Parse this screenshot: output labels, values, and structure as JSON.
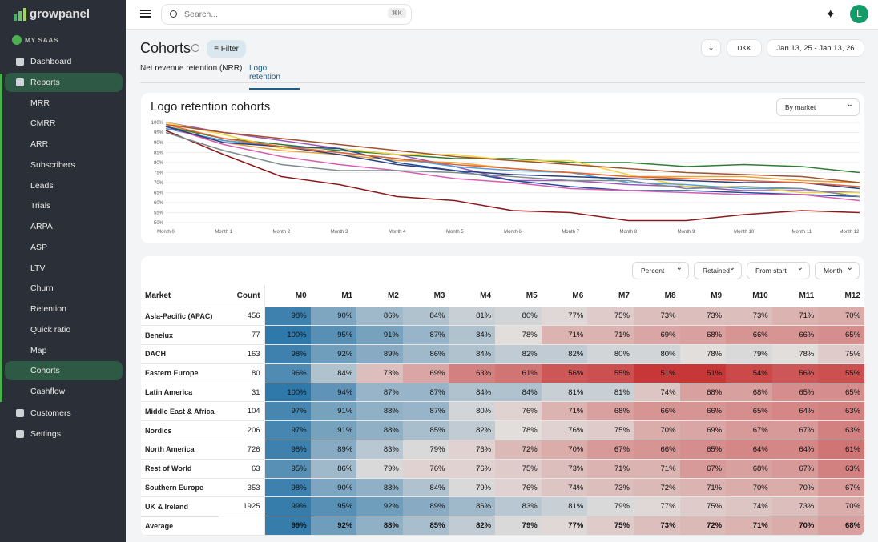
{
  "app": {
    "logo": "growpanel",
    "workspace": "MY SAAS",
    "nav": [
      "Dashboard",
      "Reports",
      "MRR",
      "CMRR",
      "ARR",
      "Subscribers",
      "Leads",
      "Trials",
      "ARPA",
      "ASP",
      "LTV",
      "Churn",
      "Retention",
      "Quick ratio",
      "Map",
      "Cohorts",
      "Cashflow",
      "Customers",
      "Settings"
    ]
  },
  "search": {
    "placeholder": "Search...",
    "shortcut": "⌘K"
  },
  "avatar": "L",
  "page": {
    "title": "Cohorts",
    "filter": "Filter",
    "currency": "DKK",
    "date_range": "Jan 13, 25 - Jan 13, 26",
    "tabs": [
      "Net revenue retention (NRR)",
      "Logo retention"
    ],
    "chart_control": "By market"
  },
  "chart_data": {
    "type": "line",
    "title": "Logo retention cohorts",
    "categories": [
      "Month 0",
      "Month 1",
      "Month 2",
      "Month 3",
      "Month 4",
      "Month 5",
      "Month 6",
      "Month 7",
      "Month 8",
      "Month 9",
      "Month 10",
      "Month 11",
      "Month 12"
    ],
    "ylim": [
      50,
      100
    ],
    "yticks": [
      {
        "value": 50,
        "label": "50%"
      },
      {
        "value": 55,
        "label": "55%"
      },
      {
        "value": 60,
        "label": "60%"
      },
      {
        "value": 65,
        "label": "65%"
      },
      {
        "value": 70,
        "label": "70%"
      },
      {
        "value": 75,
        "label": "75%"
      },
      {
        "value": 80,
        "label": "80%"
      },
      {
        "value": 85,
        "label": "85%"
      },
      {
        "value": 90,
        "label": "90%"
      },
      {
        "value": 95,
        "label": "95%"
      },
      {
        "value": 100,
        "label": "100%"
      }
    ],
    "grid": true,
    "series": [
      {
        "color": "#e8a33d",
        "values": [
          98,
          90,
          86,
          84,
          81,
          80,
          77,
          75,
          73,
          73,
          73,
          71,
          70
        ]
      },
      {
        "color": "#9b59b6",
        "values": [
          100,
          95,
          91,
          87,
          84,
          78,
          71,
          71,
          69,
          68,
          66,
          66,
          65
        ]
      },
      {
        "color": "#2e7d32",
        "values": [
          98,
          92,
          89,
          86,
          84,
          82,
          82,
          80,
          80,
          78,
          79,
          78,
          75
        ]
      },
      {
        "color": "#8b1a1a",
        "values": [
          96,
          84,
          73,
          69,
          63,
          61,
          56,
          55,
          51,
          51,
          54,
          56,
          55
        ]
      },
      {
        "color": "#f0d43a",
        "values": [
          100,
          94,
          87,
          87,
          84,
          84,
          81,
          81,
          74,
          68,
          68,
          65,
          65
        ]
      },
      {
        "color": "#1f4e9c",
        "values": [
          97,
          91,
          88,
          87,
          80,
          76,
          71,
          68,
          66,
          66,
          65,
          64,
          63
        ]
      },
      {
        "color": "#4fa3d9",
        "values": [
          97,
          91,
          88,
          85,
          82,
          78,
          76,
          75,
          70,
          69,
          67,
          67,
          63
        ]
      },
      {
        "color": "#d65db1",
        "values": [
          98,
          89,
          83,
          79,
          76,
          72,
          70,
          67,
          66,
          65,
          64,
          64,
          61
        ]
      },
      {
        "color": "#7f8c8d",
        "values": [
          95,
          86,
          79,
          76,
          76,
          75,
          73,
          71,
          71,
          67,
          68,
          67,
          63
        ]
      },
      {
        "color": "#2c3e80",
        "values": [
          98,
          90,
          88,
          84,
          79,
          76,
          74,
          73,
          72,
          71,
          70,
          70,
          67
        ]
      },
      {
        "color": "#a0522d",
        "values": [
          99,
          95,
          92,
          89,
          86,
          83,
          81,
          79,
          77,
          75,
          74,
          73,
          70
        ]
      },
      {
        "color": "#e8622c",
        "values": [
          99,
          92,
          88,
          85,
          82,
          79,
          77,
          75,
          73,
          72,
          71,
          70,
          68
        ]
      }
    ]
  },
  "table": {
    "controls": [
      "Percent",
      "Retained",
      "From start",
      "Month"
    ],
    "columns": [
      "Market",
      "Count",
      "M0",
      "M1",
      "M2",
      "M3",
      "M4",
      "M5",
      "M6",
      "M7",
      "M8",
      "M9",
      "M10",
      "M11",
      "M12"
    ],
    "rows": [
      {
        "market": "Asia-Pacific (APAC)",
        "count": 456,
        "values": [
          "98%",
          "90%",
          "86%",
          "84%",
          "81%",
          "80%",
          "77%",
          "75%",
          "73%",
          "73%",
          "73%",
          "71%",
          "70%"
        ]
      },
      {
        "market": "Benelux",
        "count": 77,
        "values": [
          "100%",
          "95%",
          "91%",
          "87%",
          "84%",
          "78%",
          "71%",
          "71%",
          "69%",
          "68%",
          "66%",
          "66%",
          "65%"
        ]
      },
      {
        "market": "DACH",
        "count": 163,
        "values": [
          "98%",
          "92%",
          "89%",
          "86%",
          "84%",
          "82%",
          "82%",
          "80%",
          "80%",
          "78%",
          "79%",
          "78%",
          "75%"
        ]
      },
      {
        "market": "Eastern Europe",
        "count": 80,
        "values": [
          "96%",
          "84%",
          "73%",
          "69%",
          "63%",
          "61%",
          "56%",
          "55%",
          "51%",
          "51%",
          "54%",
          "56%",
          "55%"
        ]
      },
      {
        "market": "Latin America",
        "count": 31,
        "values": [
          "100%",
          "94%",
          "87%",
          "87%",
          "84%",
          "84%",
          "81%",
          "81%",
          "74%",
          "68%",
          "68%",
          "65%",
          "65%"
        ]
      },
      {
        "market": "Middle East & Africa",
        "count": 104,
        "values": [
          "97%",
          "91%",
          "88%",
          "87%",
          "80%",
          "76%",
          "71%",
          "68%",
          "66%",
          "66%",
          "65%",
          "64%",
          "63%"
        ]
      },
      {
        "market": "Nordics",
        "count": 206,
        "values": [
          "97%",
          "91%",
          "88%",
          "85%",
          "82%",
          "78%",
          "76%",
          "75%",
          "70%",
          "69%",
          "67%",
          "67%",
          "63%"
        ]
      },
      {
        "market": "North America",
        "count": 726,
        "values": [
          "98%",
          "89%",
          "83%",
          "79%",
          "76%",
          "72%",
          "70%",
          "67%",
          "66%",
          "65%",
          "64%",
          "64%",
          "61%"
        ]
      },
      {
        "market": "Rest of World",
        "count": 63,
        "values": [
          "95%",
          "86%",
          "79%",
          "76%",
          "76%",
          "75%",
          "73%",
          "71%",
          "71%",
          "67%",
          "68%",
          "67%",
          "63%"
        ]
      },
      {
        "market": "Southern Europe",
        "count": 353,
        "values": [
          "98%",
          "90%",
          "88%",
          "84%",
          "79%",
          "76%",
          "74%",
          "73%",
          "72%",
          "71%",
          "70%",
          "70%",
          "67%"
        ]
      },
      {
        "market": "UK & Ireland",
        "count": 1925,
        "values": [
          "99%",
          "95%",
          "92%",
          "89%",
          "86%",
          "83%",
          "81%",
          "79%",
          "77%",
          "75%",
          "74%",
          "73%",
          "70%"
        ]
      },
      {
        "market": "Average",
        "values": [
          "99%",
          "92%",
          "88%",
          "85%",
          "82%",
          "79%",
          "77%",
          "75%",
          "73%",
          "72%",
          "71%",
          "70%",
          "68%"
        ]
      }
    ]
  }
}
